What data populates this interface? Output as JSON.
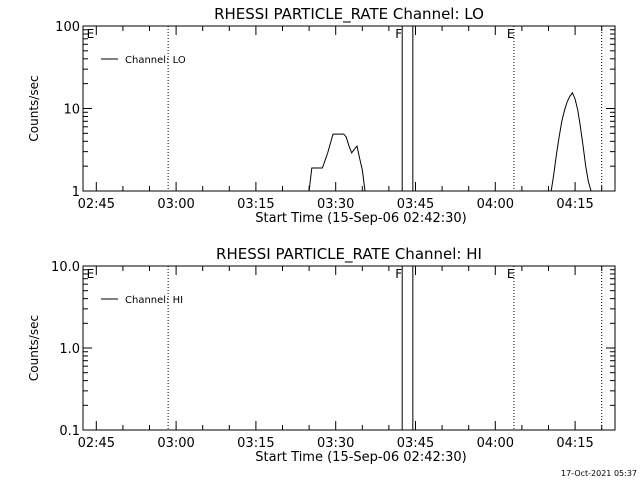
{
  "x_ticks": [
    "02:45",
    "03:00",
    "03:15",
    "03:30",
    "03:45",
    "04:00",
    "04:15"
  ],
  "xlabel": "Start Time (15-Sep-06 02:42:30)",
  "footer": "17-Oct-2021 05:37",
  "chart_data": [
    {
      "type": "line",
      "title": "RHESSI PARTICLE_RATE Channel: LO",
      "ylabel": "Counts/sec",
      "y_scale": "log",
      "ylim": [
        1,
        100
      ],
      "y_ticks": [
        "100",
        "10",
        "1"
      ],
      "xlim": [
        "02:42:30",
        "04:22:30"
      ],
      "legend": {
        "label": "Channel: LO",
        "position": "top-left"
      },
      "markers": [
        {
          "label": "E",
          "time": "02:43",
          "style": "none"
        },
        {
          "label": "",
          "time": "02:58:30",
          "style": "dotted"
        },
        {
          "label": "F",
          "time": "03:42:30",
          "style": "solid"
        },
        {
          "label": "",
          "time": "03:44:30",
          "style": "solid"
        },
        {
          "label": "E",
          "time": "04:03:30",
          "style": "dotted"
        },
        {
          "label": "",
          "time": "04:20",
          "style": "dotted"
        }
      ],
      "series": [
        {
          "name": "Channel: LO",
          "segments": [
            [
              [
                "03:25:00",
                1
              ],
              [
                "03:25:30",
                1.9
              ],
              [
                "03:27:30",
                1.9
              ],
              [
                "03:28:30",
                2.9
              ],
              [
                "03:29:30",
                4.9
              ],
              [
                "03:31:30",
                4.9
              ],
              [
                "03:32:00",
                4.5
              ],
              [
                "03:32:30",
                3.5
              ],
              [
                "03:33:00",
                2.9
              ],
              [
                "03:33:30",
                3.2
              ],
              [
                "03:34:00",
                3.5
              ],
              [
                "03:34:30",
                2.5
              ],
              [
                "03:35:00",
                1.8
              ],
              [
                "03:35:30",
                1
              ]
            ],
            [
              [
                "04:10:30",
                1
              ],
              [
                "04:11:00",
                1.6
              ],
              [
                "04:11:30",
                2.8
              ],
              [
                "04:12:00",
                4.5
              ],
              [
                "04:12:30",
                7
              ],
              [
                "04:13:00",
                9.5
              ],
              [
                "04:13:30",
                12
              ],
              [
                "04:14:00",
                14
              ],
              [
                "04:14:30",
                15.5
              ],
              [
                "04:15:00",
                13
              ],
              [
                "04:15:30",
                9.5
              ],
              [
                "04:16:00",
                6
              ],
              [
                "04:16:30",
                3.5
              ],
              [
                "04:17:00",
                2
              ],
              [
                "04:17:30",
                1.3
              ],
              [
                "04:18:00",
                1
              ]
            ]
          ]
        }
      ]
    },
    {
      "type": "line",
      "title": "RHESSI PARTICLE_RATE Channel: HI",
      "ylabel": "Counts/sec",
      "y_scale": "log",
      "ylim": [
        0.1,
        10
      ],
      "y_ticks": [
        "10.0",
        "1.0",
        "0.1"
      ],
      "xlim": [
        "02:42:30",
        "04:22:30"
      ],
      "legend": {
        "label": "Channel: HI",
        "position": "top-left"
      },
      "markers": [
        {
          "label": "E",
          "time": "02:43",
          "style": "none"
        },
        {
          "label": "",
          "time": "02:58:30",
          "style": "dotted"
        },
        {
          "label": "F",
          "time": "03:42:30",
          "style": "solid"
        },
        {
          "label": "",
          "time": "03:44:30",
          "style": "solid"
        },
        {
          "label": "E",
          "time": "04:03:30",
          "style": "dotted"
        },
        {
          "label": "",
          "time": "04:20",
          "style": "dotted"
        }
      ],
      "series": [
        {
          "name": "Channel: HI",
          "segments": []
        }
      ]
    }
  ]
}
